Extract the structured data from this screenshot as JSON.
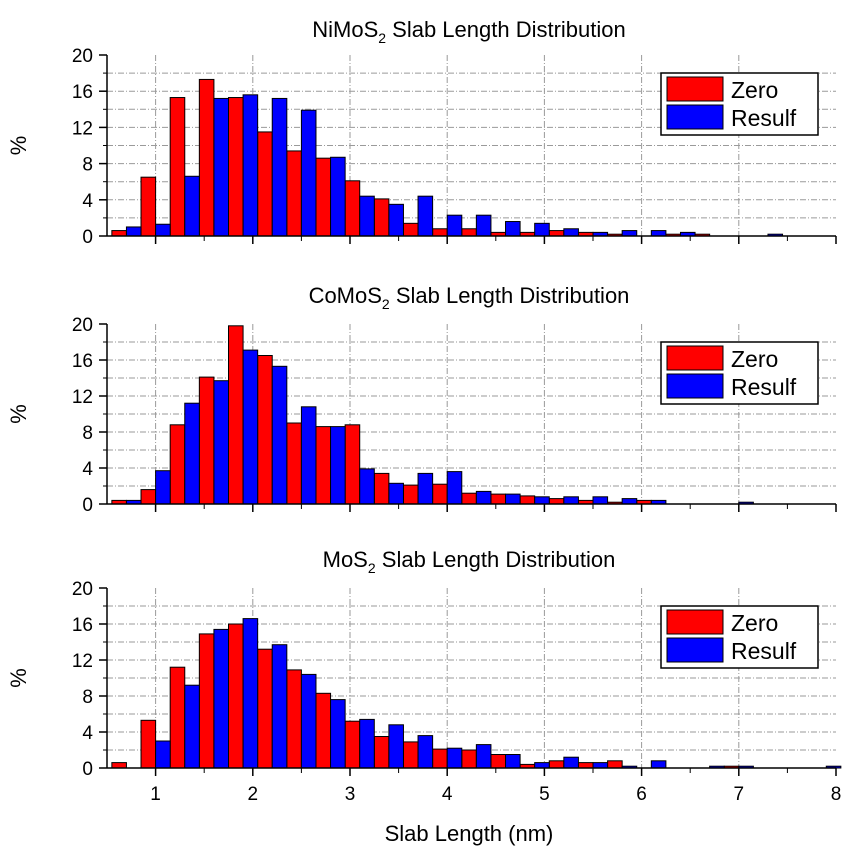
{
  "chart_data": [
    {
      "type": "bar",
      "title": "NiMoS",
      "title_subscript": "2",
      "title_suffix": " Slab Length Distribution",
      "ylabel": "%",
      "ylim": [
        0,
        20
      ],
      "xlim": [
        0.5,
        8
      ],
      "y_ticks": [
        "0",
        "4",
        "8",
        "12",
        "16",
        "20"
      ],
      "x": [
        0.7,
        1.0,
        1.3,
        1.6,
        1.9,
        2.2,
        2.5,
        2.8,
        3.1,
        3.4,
        3.7,
        4.0,
        4.3,
        4.6,
        4.9,
        5.2,
        5.5,
        5.8,
        6.1,
        6.4,
        6.7,
        7.0,
        7.3,
        7.6,
        7.9
      ],
      "series": [
        {
          "name": "Zero",
          "color": "#ff0000",
          "values": [
            0.6,
            6.5,
            15.3,
            17.3,
            15.3,
            11.5,
            9.4,
            8.6,
            6.1,
            4.1,
            1.4,
            0.8,
            0.8,
            0.4,
            0.4,
            0.6,
            0.4,
            0.2,
            0.0,
            0.2,
            0.2,
            0.0,
            0.0,
            0.0,
            0.0
          ]
        },
        {
          "name": "Resulf",
          "color": "#0000ff",
          "values": [
            1.0,
            1.3,
            6.6,
            15.2,
            15.6,
            15.2,
            13.9,
            8.7,
            4.4,
            3.5,
            4.4,
            2.3,
            2.3,
            1.6,
            1.4,
            0.8,
            0.4,
            0.6,
            0.6,
            0.4,
            0.0,
            0.0,
            0.2,
            0.0,
            0.0
          ]
        }
      ]
    },
    {
      "type": "bar",
      "title": "CoMoS",
      "title_subscript": "2",
      "title_suffix": " Slab Length Distribution",
      "ylabel": "%",
      "ylim": [
        0,
        20
      ],
      "xlim": [
        0.5,
        8
      ],
      "y_ticks": [
        "0",
        "4",
        "8",
        "12",
        "16",
        "20"
      ],
      "x": [
        0.7,
        1.0,
        1.3,
        1.6,
        1.9,
        2.2,
        2.5,
        2.8,
        3.1,
        3.4,
        3.7,
        4.0,
        4.3,
        4.6,
        4.9,
        5.2,
        5.5,
        5.8,
        6.1,
        6.4,
        6.7,
        7.0,
        7.3,
        7.6,
        7.9
      ],
      "series": [
        {
          "name": "Zero",
          "color": "#ff0000",
          "values": [
            0.4,
            1.6,
            8.8,
            14.1,
            19.8,
            16.5,
            9.0,
            8.6,
            8.8,
            3.4,
            2.1,
            2.2,
            1.2,
            1.1,
            0.9,
            0.6,
            0.4,
            0.2,
            0.4,
            0.0,
            0.0,
            0.0,
            0.0,
            0.0,
            0.0
          ]
        },
        {
          "name": "Resulf",
          "color": "#0000ff",
          "values": [
            0.4,
            3.7,
            11.2,
            13.7,
            17.1,
            15.3,
            10.8,
            8.6,
            3.9,
            2.3,
            3.4,
            3.6,
            1.4,
            1.1,
            0.8,
            0.8,
            0.8,
            0.6,
            0.4,
            0.0,
            0.0,
            0.2,
            0.0,
            0.0,
            0.0
          ]
        }
      ]
    },
    {
      "type": "bar",
      "title": "MoS",
      "title_subscript": "2",
      "title_suffix": " Slab Length Distribution",
      "ylabel": "%",
      "xlabel": "Slab Length (nm)",
      "ylim": [
        0,
        20
      ],
      "xlim": [
        0.5,
        8
      ],
      "y_ticks": [
        "0",
        "4",
        "8",
        "12",
        "16",
        "20"
      ],
      "x_ticks": [
        "1",
        "2",
        "3",
        "4",
        "5",
        "6",
        "7",
        "8"
      ],
      "x": [
        0.7,
        1.0,
        1.3,
        1.6,
        1.9,
        2.2,
        2.5,
        2.8,
        3.1,
        3.4,
        3.7,
        4.0,
        4.3,
        4.6,
        4.9,
        5.2,
        5.5,
        5.8,
        6.1,
        6.4,
        6.7,
        7.0,
        7.3,
        7.6,
        7.9
      ],
      "series": [
        {
          "name": "Zero",
          "color": "#ff0000",
          "values": [
            0.6,
            5.3,
            11.2,
            14.9,
            16.0,
            13.2,
            10.9,
            8.3,
            5.2,
            3.5,
            2.9,
            2.1,
            2.0,
            1.5,
            0.4,
            0.8,
            0.6,
            0.8,
            0.0,
            0.0,
            0.0,
            0.2,
            0.0,
            0.0,
            0.0
          ]
        },
        {
          "name": "Resulf",
          "color": "#0000ff",
          "values": [
            0.0,
            3.0,
            9.2,
            15.4,
            16.6,
            13.7,
            10.4,
            7.6,
            5.4,
            4.8,
            3.6,
            2.2,
            2.6,
            1.5,
            0.6,
            1.2,
            0.6,
            0.2,
            0.8,
            0.0,
            0.2,
            0.2,
            0.0,
            0.0,
            0.2
          ]
        }
      ]
    }
  ]
}
